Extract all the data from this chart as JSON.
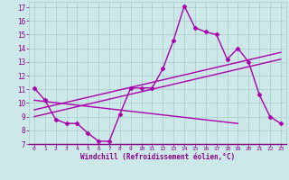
{
  "background_color": "#cce8e8",
  "grid_color": "#aacccc",
  "line_color": "#aa00aa",
  "xlabel": "Windchill (Refroidissement éolien,°C)",
  "xlim": [
    -0.5,
    23.5
  ],
  "ylim": [
    7,
    17.4
  ],
  "xticks": [
    0,
    1,
    2,
    3,
    4,
    5,
    6,
    7,
    8,
    9,
    10,
    11,
    12,
    13,
    14,
    15,
    16,
    17,
    18,
    19,
    20,
    21,
    22,
    23
  ],
  "yticks": [
    7,
    8,
    9,
    10,
    11,
    12,
    13,
    14,
    15,
    16,
    17
  ],
  "series1_x": [
    0,
    1,
    2,
    3,
    4,
    5,
    6,
    7,
    8,
    9,
    10,
    11,
    12,
    13,
    14,
    15,
    16,
    17,
    18,
    19,
    20,
    21,
    22,
    23
  ],
  "series1_y": [
    11.1,
    10.2,
    8.8,
    8.5,
    8.5,
    7.8,
    7.2,
    7.2,
    9.2,
    11.1,
    11.1,
    11.1,
    12.5,
    14.6,
    17.1,
    15.5,
    15.2,
    15.0,
    13.2,
    14.0,
    13.0,
    10.6,
    9.0,
    8.5
  ],
  "series2_x": [
    0,
    23
  ],
  "series2_y": [
    9.0,
    13.2
  ],
  "series3_x": [
    0,
    23
  ],
  "series3_y": [
    9.5,
    13.7
  ],
  "series4_x": [
    0,
    19
  ],
  "series4_y": [
    10.2,
    8.5
  ],
  "marker": "D",
  "markersize": 2.5,
  "linewidth": 1.0
}
